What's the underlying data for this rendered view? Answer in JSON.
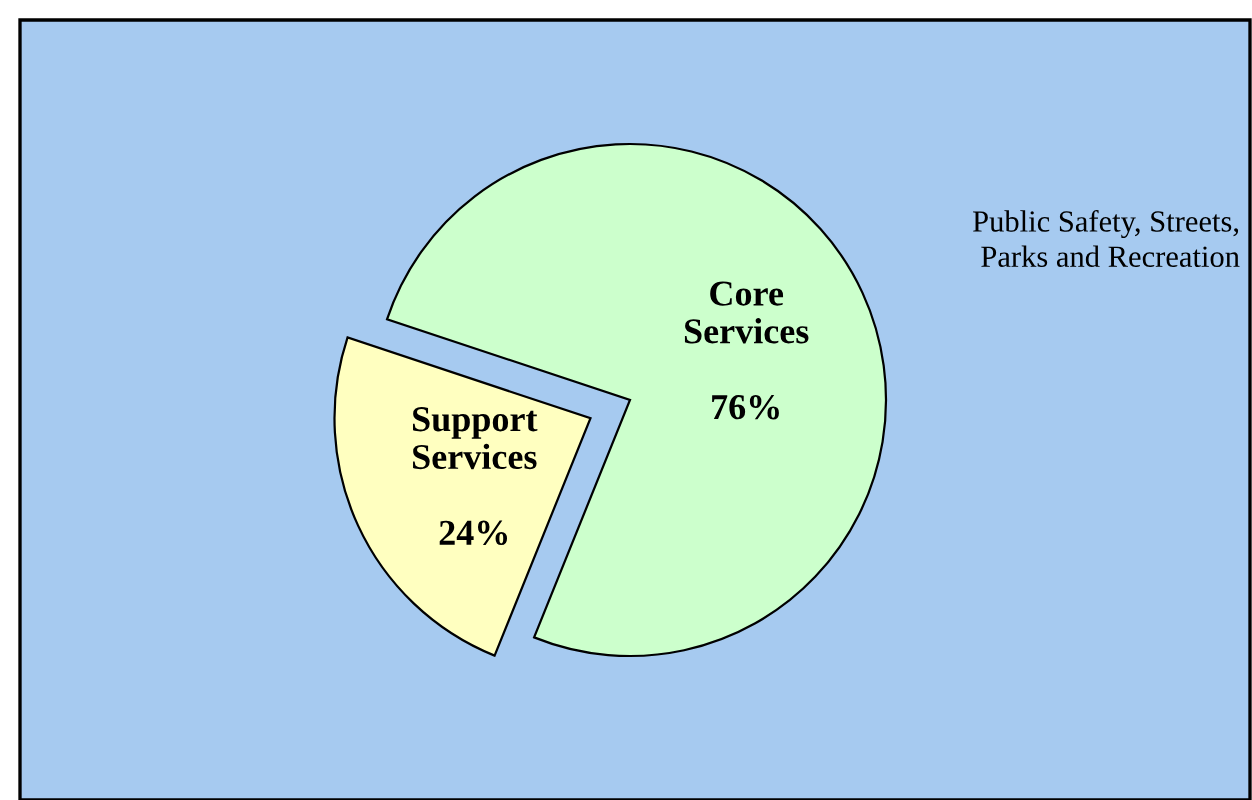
{
  "chart_data": {
    "type": "pie",
    "categories": [
      "Core\nServices",
      "Support\nServices"
    ],
    "values": [
      76,
      24
    ],
    "colors": [
      "#ccffcc",
      "#ffffc0"
    ],
    "value_labels": [
      "76%",
      "24%"
    ],
    "annotations": [
      "Public Safety, Streets,\nParks and Recreation"
    ]
  }
}
